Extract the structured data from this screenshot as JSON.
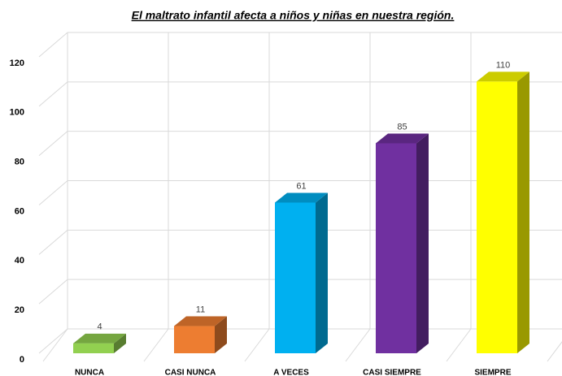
{
  "chart_data": {
    "type": "bar3d",
    "title": "El maltrato infantil afecta a niños y niñas en nuestra región.",
    "categories": [
      "NUNCA",
      "CASI NUNCA",
      "A VECES",
      "CASI SIEMPRE",
      "SIEMPRE"
    ],
    "values": [
      4,
      11,
      61,
      85,
      110
    ],
    "colors": [
      "#92d050",
      "#ed7d31",
      "#00b0f0",
      "#7030a0",
      "#ffff00"
    ],
    "ylim": [
      0,
      120
    ],
    "yticks": [
      0,
      20,
      40,
      60,
      80,
      100,
      120
    ],
    "grid": true
  }
}
